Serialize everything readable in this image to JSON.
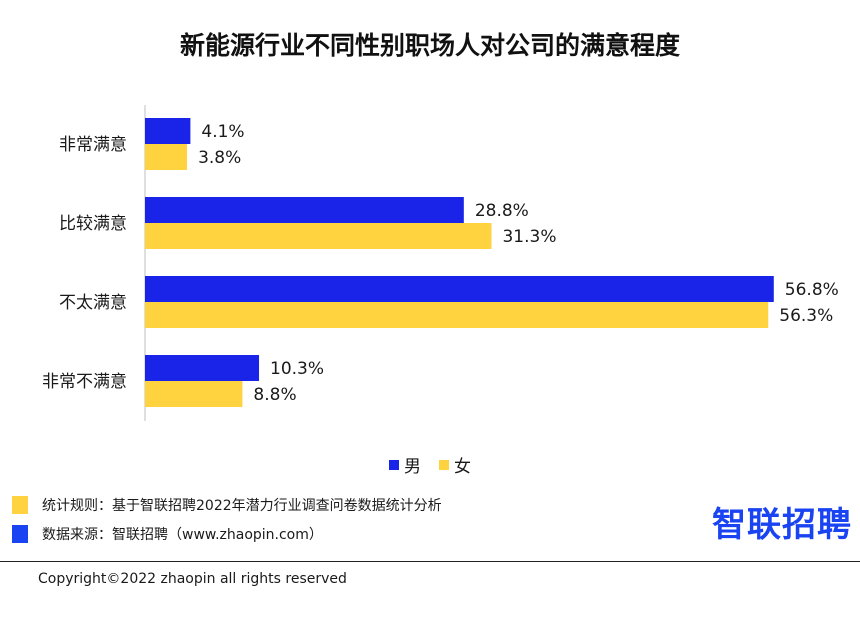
{
  "title": "新能源行业不同性别职场人对公司的满意程度",
  "chart_data": {
    "type": "bar",
    "orientation": "horizontal",
    "categories": [
      "非常满意",
      "比较满意",
      "不太满意",
      "非常不满意"
    ],
    "series": [
      {
        "name": "男",
        "color": "#1a24e8",
        "values": [
          4.1,
          28.8,
          56.8,
          10.3
        ],
        "labels": [
          "4.1%",
          "28.8%",
          "56.8%",
          "10.3%"
        ]
      },
      {
        "name": "女",
        "color": "#ffd23f",
        "values": [
          3.8,
          31.3,
          56.3,
          8.8
        ],
        "labels": [
          "3.8%",
          "31.3%",
          "56.3%",
          "8.8%"
        ]
      }
    ],
    "xlim": [
      0,
      57
    ],
    "grid": false,
    "legend_position": "bottom"
  },
  "notes": [
    {
      "text": "统计规则：基于智联招聘2022年潜力行业调查问卷数据统计分析",
      "color": "#ffd23f"
    },
    {
      "text": "数据来源：智联招聘（www.zhaopin.com）",
      "color": "#1a44f2"
    }
  ],
  "logo": "智联招聘",
  "copyright": "Copyright©2022 zhaopin all rights reserved"
}
